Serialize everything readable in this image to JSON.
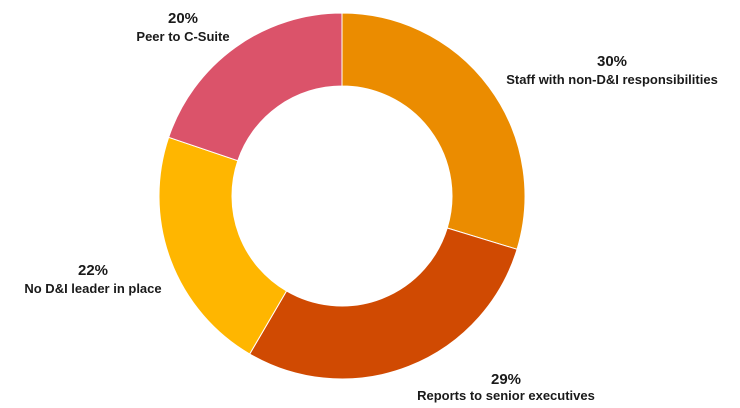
{
  "chart_data": {
    "type": "pie",
    "variant": "donut",
    "title": "",
    "slices": [
      {
        "label": "Staff with non-D&I responsibilities",
        "value": 30,
        "value_label": "30%",
        "color": "#EB8C00"
      },
      {
        "label": "Reports to senior executives",
        "value": 29,
        "value_label": "29%",
        "color": "#D04A02"
      },
      {
        "label": "No D&I leader in place",
        "value": 22,
        "value_label": "22%",
        "color": "#FFB600"
      },
      {
        "label": "Peer to C-Suite",
        "value": 20,
        "value_label": "20%",
        "color": "#DB536A"
      }
    ]
  }
}
